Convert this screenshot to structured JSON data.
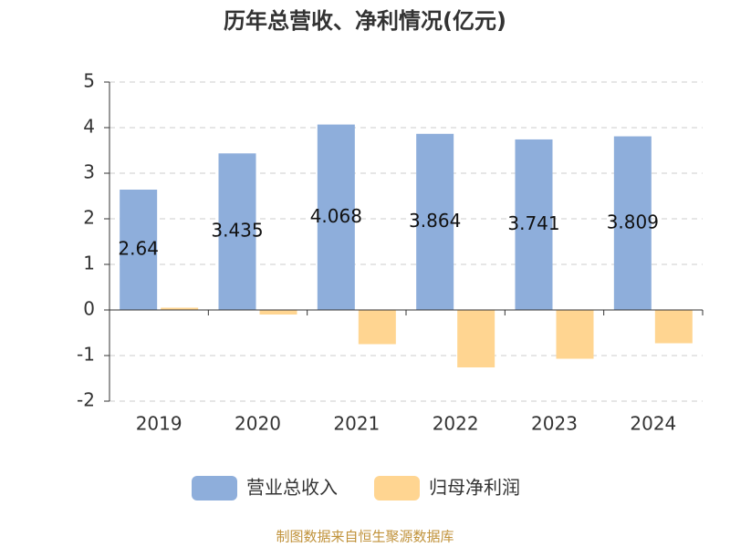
{
  "chart_data": {
    "type": "bar",
    "title": "历年总营收、净利情况(亿元)",
    "categories": [
      "2019",
      "2020",
      "2021",
      "2022",
      "2023",
      "2024"
    ],
    "series": [
      {
        "name": "营业总收入",
        "color": "#8eaedb",
        "values": [
          2.64,
          3.435,
          4.068,
          3.864,
          3.741,
          3.809
        ],
        "show_labels": true
      },
      {
        "name": "归母净利润",
        "color": "#ffd591",
        "values": [
          0.05,
          -0.1,
          -0.75,
          -1.26,
          -1.07,
          -0.73
        ],
        "show_labels": false
      }
    ],
    "ylim": [
      -2,
      5
    ],
    "yticks": [
      -2,
      -1,
      0,
      1,
      2,
      3,
      4,
      5
    ],
    "grid": true,
    "source": "制图数据来自恒生聚源数据库"
  }
}
